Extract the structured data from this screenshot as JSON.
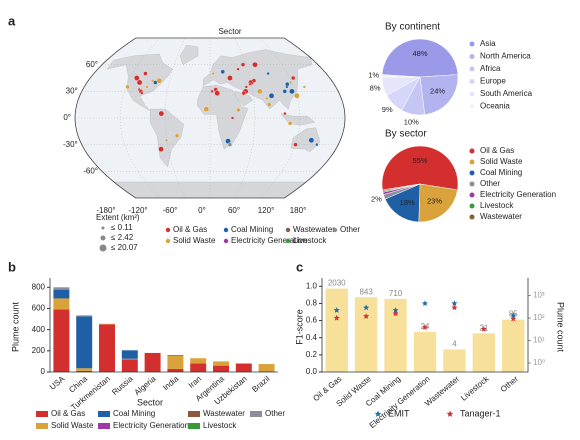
{
  "chart_data": [
    {
      "type": "map",
      "panel": "a",
      "title": "Sector",
      "lat_labels": [
        "60°",
        "30°",
        "0°",
        "-30°",
        "-60°"
      ],
      "lon_labels": [
        "-180°",
        "-120°",
        "-60°",
        "0°",
        "60°",
        "120°",
        "180°"
      ],
      "size_legend": {
        "title": "Extent (km²)",
        "labels": [
          "≤ 0.11",
          "≤ 2.42",
          "≤ 20.07"
        ]
      },
      "categories": [
        "Oil & Gas",
        "Solid Waste",
        "Coal Mining",
        "Electricity Generation",
        "Wastewater",
        "Livestock",
        "Other"
      ],
      "colors": [
        "#d42f2f",
        "#d9a23a",
        "#1f5fa6",
        "#9b3aa0",
        "#8b5a3c",
        "#3a9a3a",
        "#8a8f99"
      ]
    },
    {
      "type": "pie",
      "title": "By continent",
      "categories": [
        "Asia",
        "North America",
        "Africa",
        "Europe",
        "South America",
        "Oceania"
      ],
      "values": [
        48,
        24,
        10,
        9,
        8,
        1
      ],
      "value_labels": [
        "48%",
        "24%",
        "10%",
        "9%",
        "8%",
        "1%"
      ],
      "colors": [
        "#9a9ae8",
        "#b3b3f0",
        "#c6c6f5",
        "#d6d6f8",
        "#e6e6fb",
        "#f2f2fd"
      ]
    },
    {
      "type": "pie",
      "title": "By sector",
      "categories": [
        "Oil & Gas",
        "Solid Waste",
        "Coal Mining",
        "Other",
        "Electricity Generation",
        "Livestock",
        "Wastewater"
      ],
      "values": [
        55,
        23,
        18,
        2,
        1,
        0.5,
        0.5
      ],
      "value_labels": [
        "55%",
        "23%",
        "18%",
        "2%",
        null,
        null,
        null
      ],
      "colors": [
        "#d42f2f",
        "#d9a23a",
        "#1f5fa6",
        "#8a8f99",
        "#9b3aa0",
        "#3a9a3a",
        "#8b5a3c"
      ]
    },
    {
      "type": "stacked_bar",
      "panel": "b",
      "xlabel": "Sector",
      "ylabel": "Plume count",
      "categories": [
        "USA",
        "China",
        "Turkmenistan",
        "Russia",
        "Algeria",
        "India",
        "Iran",
        "Argentina",
        "Uzbekistan",
        "Brazil"
      ],
      "series": [
        {
          "name": "Oil & Gas",
          "color": "#d42f2f",
          "values": [
            590,
            10,
            450,
            120,
            180,
            30,
            80,
            60,
            80,
            5
          ]
        },
        {
          "name": "Solid Waste",
          "color": "#d9a23a",
          "values": [
            105,
            25,
            5,
            5,
            0,
            125,
            50,
            40,
            0,
            70
          ]
        },
        {
          "name": "Coal Mining",
          "color": "#1f5fa6",
          "values": [
            80,
            490,
            0,
            80,
            0,
            5,
            0,
            0,
            0,
            0
          ]
        },
        {
          "name": "Electricity Generation",
          "color": "#9b3aa0",
          "values": [
            0,
            0,
            0,
            0,
            0,
            0,
            0,
            0,
            0,
            0
          ]
        },
        {
          "name": "Wastewater",
          "color": "#8b5a3c",
          "values": [
            5,
            0,
            0,
            0,
            0,
            0,
            0,
            0,
            0,
            0
          ]
        },
        {
          "name": "Livestock",
          "color": "#3a9a3a",
          "values": [
            0,
            0,
            0,
            0,
            0,
            0,
            0,
            0,
            0,
            0
          ]
        },
        {
          "name": "Other",
          "color": "#8a8f99",
          "values": [
            20,
            10,
            0,
            0,
            0,
            0,
            0,
            0,
            0,
            0
          ]
        }
      ],
      "ylim": [
        0,
        850
      ],
      "yticks": [
        0,
        200,
        400,
        600,
        800
      ]
    },
    {
      "type": "bar_scatter",
      "panel": "c",
      "ylabel": "F1-score",
      "y2label": "Plume count",
      "categories": [
        "Oil & Gas",
        "Solid Waste",
        "Coal Mining",
        "Electricity Generation",
        "Wastewater",
        "Livestock",
        "Other"
      ],
      "bar": {
        "values": [
          2030,
          843,
          710,
          24,
          4,
          21,
          85
        ],
        "color": "#f7e09a",
        "axis": "y2"
      },
      "series": [
        {
          "name": "EMIT",
          "color": "#1f6fa6",
          "values": [
            0.72,
            0.75,
            0.72,
            0.8,
            0.8,
            null,
            0.66
          ]
        },
        {
          "name": "Tanager-1",
          "color": "#d42f2f",
          "values": [
            0.63,
            0.65,
            0.68,
            0.52,
            0.75,
            0.5,
            0.62
          ]
        }
      ],
      "ylim": [
        0,
        1.05
      ],
      "yticks": [
        {
          "value": 0,
          "label": "0.0"
        },
        {
          "value": 0.2,
          "label": "0.2"
        },
        {
          "value": 0.4,
          "label": "0.4"
        },
        {
          "value": 0.6,
          "label": "0.6"
        },
        {
          "value": 0.8,
          "label": "0.8"
        },
        {
          "value": 1,
          "label": "1.0"
        }
      ],
      "y2lim": [
        0.4,
        4000
      ],
      "y2log": true,
      "y2ticks": [
        {
          "value": 1,
          "label": "10⁰"
        },
        {
          "value": 10,
          "label": "10¹"
        },
        {
          "value": 100,
          "label": "10²"
        },
        {
          "value": 1000,
          "label": "10³"
        }
      ]
    }
  ]
}
